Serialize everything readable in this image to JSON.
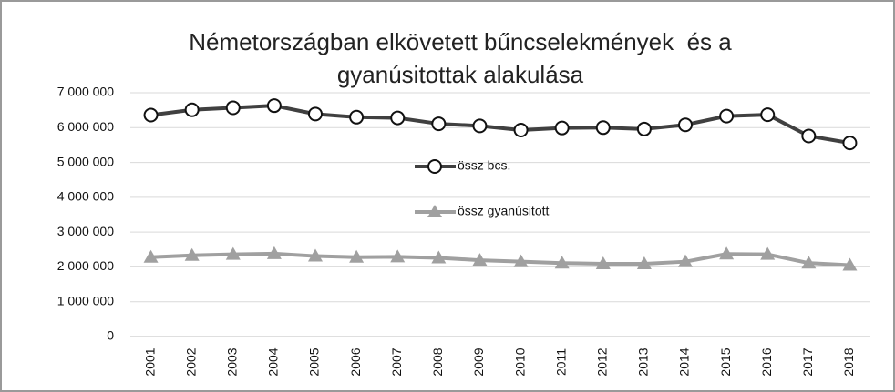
{
  "chart_data": {
    "type": "line",
    "title": "Németországban elkövetett bűncselekmények  és a gyanúsitottak alakulása",
    "categories": [
      "2001",
      "2002",
      "2003",
      "2004",
      "2005",
      "2006",
      "2007",
      "2008",
      "2009",
      "2010",
      "2011",
      "2012",
      "2013",
      "2014",
      "2015",
      "2016",
      "2017",
      "2018"
    ],
    "series": [
      {
        "name": "össz bcs.",
        "color": "#404040",
        "marker": "circle",
        "values": [
          6360000,
          6510000,
          6570000,
          6630000,
          6390000,
          6300000,
          6280000,
          6110000,
          6050000,
          5930000,
          5990000,
          6000000,
          5960000,
          6080000,
          6330000,
          6370000,
          5760000,
          5560000
        ]
      },
      {
        "name": "össz gyanúsitott",
        "color": "#a0a0a0",
        "marker": "triangle",
        "values": [
          2280000,
          2330000,
          2360000,
          2380000,
          2310000,
          2280000,
          2290000,
          2260000,
          2190000,
          2150000,
          2110000,
          2090000,
          2090000,
          2150000,
          2370000,
          2360000,
          2110000,
          2050000
        ]
      }
    ],
    "ylim": [
      0,
      7000000
    ],
    "yticks": [
      0,
      {
        "value": 1000000,
        "label": "1 000 000"
      },
      {
        "value": 2000000,
        "label": "2 000 000"
      },
      {
        "value": 3000000,
        "label": "3 000 000"
      },
      {
        "value": 4000000,
        "label": "4 000 000"
      },
      {
        "value": 5000000,
        "label": "5 000 000"
      },
      {
        "value": 6000000,
        "label": "6 000 000"
      },
      {
        "value": 7000000,
        "label": "7 000 000"
      }
    ],
    "grid": true
  }
}
